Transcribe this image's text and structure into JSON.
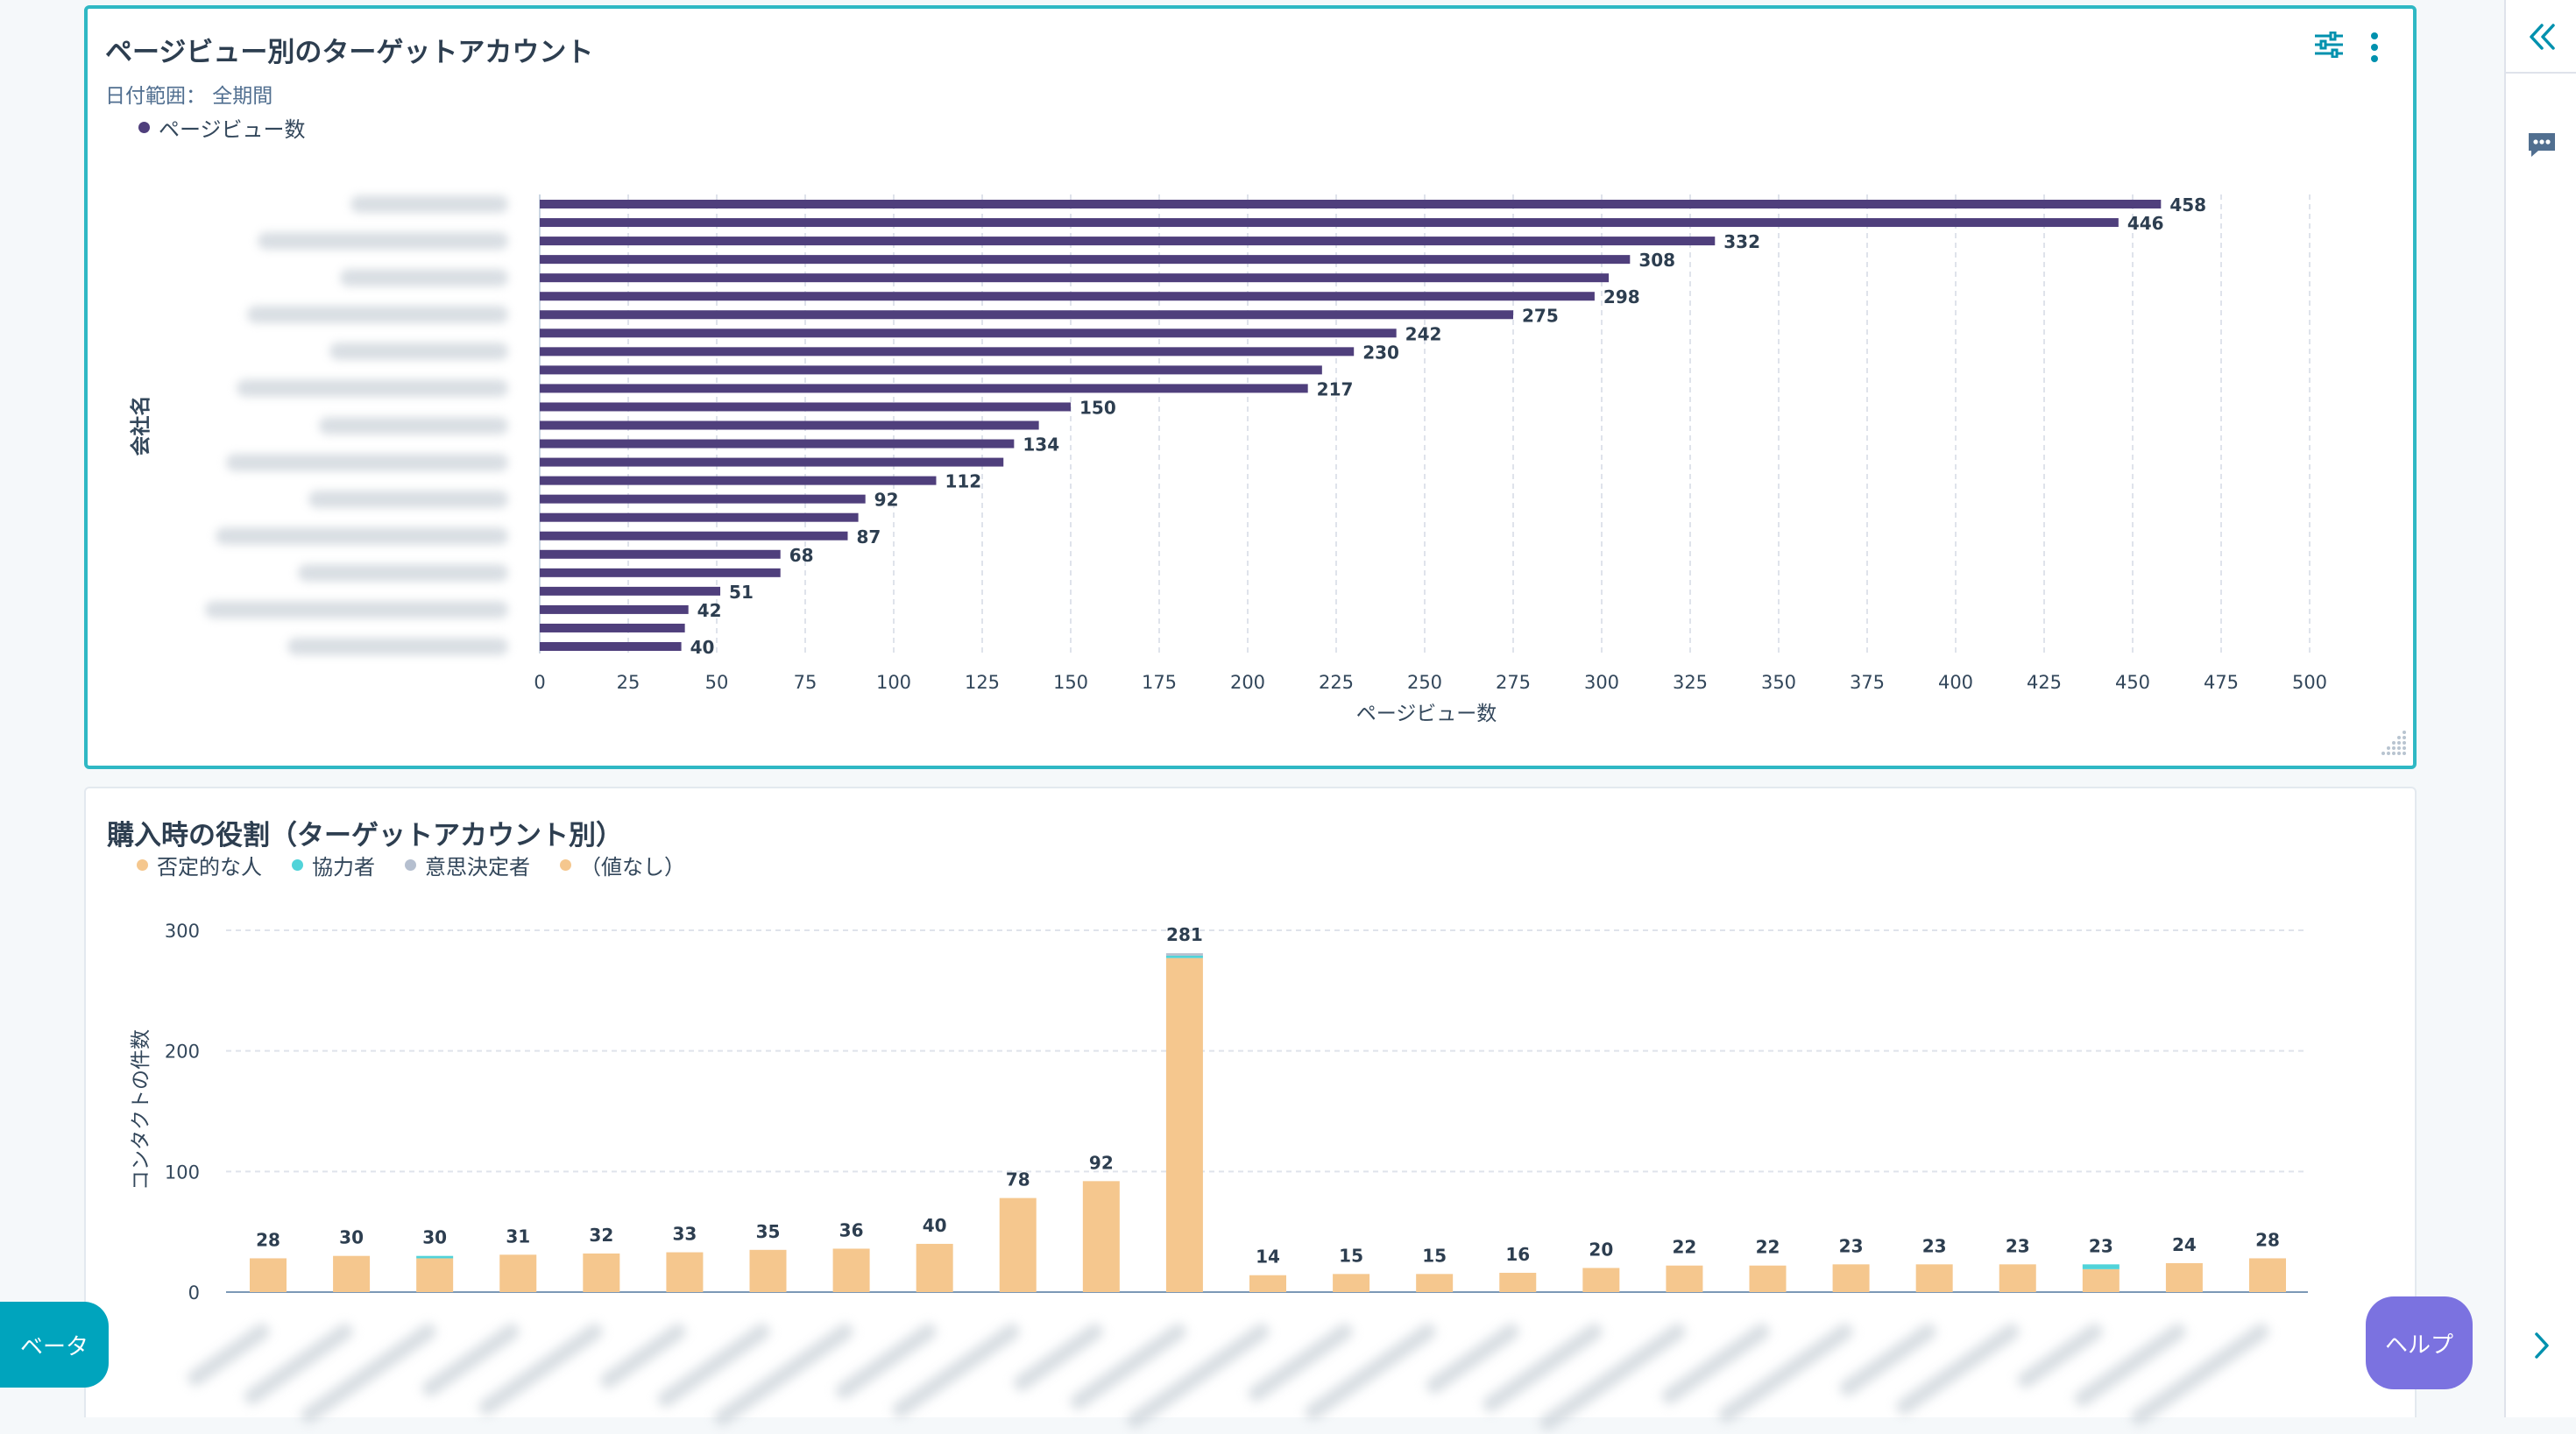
{
  "card1": {
    "title": "ページビュー別のターゲットアカウント",
    "date_range": "日付範囲： 全期間",
    "legend": [
      {
        "label": "ページビュー数",
        "color": "#4f3f7c"
      }
    ]
  },
  "card2": {
    "title": "購入時の役割（ターゲットアカウント別）",
    "legend": [
      {
        "label": "否定的な人",
        "color": "#f5c78e"
      },
      {
        "label": "協力者",
        "color": "#51d3d9"
      },
      {
        "label": "意思決定者",
        "color": "#b5bfcf"
      },
      {
        "label": "（値なし）",
        "color": "#f5c78e"
      }
    ]
  },
  "chart_data": [
    {
      "type": "bar",
      "orientation": "horizontal",
      "ylabel": "会社名",
      "xlabel": "ページビュー数",
      "xlim": [
        0,
        500
      ],
      "xticks": [
        0,
        25,
        50,
        75,
        100,
        125,
        150,
        175,
        200,
        225,
        250,
        275,
        300,
        325,
        350,
        375,
        400,
        425,
        450,
        475,
        500
      ],
      "grid": true,
      "series": [
        {
          "name": "ページビュー数",
          "color": "#4f3f7c",
          "values": [
            458,
            446,
            332,
            308,
            302,
            298,
            275,
            242,
            230,
            221,
            217,
            150,
            141,
            134,
            131,
            112,
            92,
            90,
            87,
            68,
            68,
            51,
            42,
            41,
            40
          ],
          "labels": [
            "458",
            "446",
            "332",
            "308",
            "",
            "298",
            "275",
            "242",
            "230",
            "",
            "217",
            "150",
            "",
            "134",
            "",
            "112",
            "92",
            "",
            "87",
            "68",
            "",
            "51",
            "42",
            "",
            "40"
          ]
        }
      ]
    },
    {
      "type": "bar",
      "stacked": true,
      "ylabel": "コンタクトの件数",
      "ylim": [
        0,
        300
      ],
      "yticks": [
        0,
        100,
        200,
        300
      ],
      "grid": true,
      "totals": [
        28,
        30,
        30,
        31,
        32,
        33,
        35,
        36,
        40,
        78,
        92,
        281,
        14,
        15,
        15,
        16,
        20,
        22,
        22,
        23,
        23,
        23,
        23,
        24,
        28
      ],
      "series": [
        {
          "name": "（値なし）",
          "color": "#f5c78e",
          "values": [
            28,
            30,
            28,
            31,
            32,
            33,
            35,
            36,
            40,
            78,
            92,
            277,
            14,
            15,
            15,
            16,
            20,
            22,
            22,
            23,
            23,
            23,
            19,
            24,
            28
          ]
        },
        {
          "name": "協力者",
          "color": "#51d3d9",
          "values": [
            0,
            0,
            2,
            0,
            0,
            0,
            0,
            0,
            0,
            0,
            0,
            2,
            0,
            0,
            0,
            0,
            0,
            0,
            0,
            0,
            0,
            0,
            4,
            0,
            0
          ]
        },
        {
          "name": "意思決定者",
          "color": "#b5bfcf",
          "values": [
            0,
            0,
            0,
            0,
            0,
            0,
            0,
            0,
            0,
            0,
            0,
            2,
            0,
            0,
            0,
            0,
            0,
            0,
            0,
            0,
            0,
            0,
            0,
            0,
            0
          ]
        }
      ]
    }
  ],
  "buttons": {
    "beta": "ベータ",
    "help": "ヘルプ"
  }
}
